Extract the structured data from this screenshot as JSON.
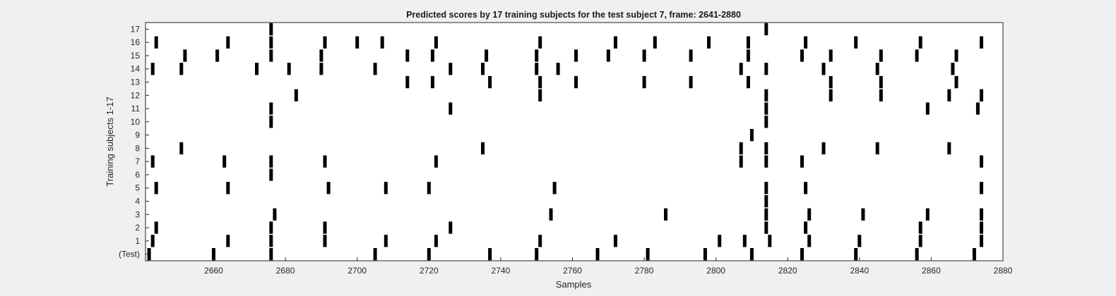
{
  "chart_data": {
    "type": "raster",
    "title": "Predicted scores by 17 training subjects for the test subject 7, frame: 2641-2880",
    "xlabel": "Samples",
    "ylabel": "Training subjects 1-17",
    "xlim": [
      2641,
      2880
    ],
    "x_ticks": [
      2660,
      2680,
      2700,
      2720,
      2740,
      2760,
      2780,
      2800,
      2820,
      2840,
      2860,
      2880
    ],
    "y_tick_labels": [
      "(Test)",
      "1",
      "2",
      "3",
      "4",
      "5",
      "6",
      "7",
      "8",
      "9",
      "10",
      "11",
      "12",
      "13",
      "14",
      "15",
      "16",
      "17"
    ],
    "series": [
      {
        "name": "(Test)",
        "values": [
          2642,
          2660,
          2676,
          2705,
          2720,
          2737,
          2750,
          2767,
          2781,
          2797,
          2810,
          2824,
          2839,
          2856,
          2872
        ]
      },
      {
        "name": "1",
        "values": [
          2643,
          2664,
          2676,
          2691,
          2708,
          2722,
          2751,
          2772,
          2801,
          2808,
          2815,
          2826,
          2840,
          2857,
          2874
        ]
      },
      {
        "name": "2",
        "values": [
          2644,
          2676,
          2691,
          2726,
          2814,
          2825,
          2857,
          2874
        ]
      },
      {
        "name": "3",
        "values": [
          2677,
          2754,
          2786,
          2814,
          2826,
          2841,
          2859,
          2874
        ]
      },
      {
        "name": "4",
        "values": [
          2814
        ]
      },
      {
        "name": "5",
        "values": [
          2644,
          2664,
          2692,
          2708,
          2720,
          2755,
          2814,
          2825,
          2874
        ]
      },
      {
        "name": "6",
        "values": [
          2676
        ]
      },
      {
        "name": "7",
        "values": [
          2643,
          2663,
          2676,
          2691,
          2722,
          2807,
          2814,
          2824,
          2874
        ]
      },
      {
        "name": "8",
        "values": [
          2651,
          2735,
          2807,
          2814,
          2830,
          2845,
          2865
        ]
      },
      {
        "name": "9",
        "values": [
          2810
        ]
      },
      {
        "name": "10",
        "values": [
          2676,
          2814
        ]
      },
      {
        "name": "11",
        "values": [
          2676,
          2726,
          2814,
          2859,
          2873
        ]
      },
      {
        "name": "12",
        "values": [
          2683,
          2751,
          2814,
          2832,
          2846,
          2865,
          2874
        ]
      },
      {
        "name": "13",
        "values": [
          2714,
          2721,
          2737,
          2751,
          2761,
          2780,
          2793,
          2809,
          2832,
          2846,
          2867
        ]
      },
      {
        "name": "14",
        "values": [
          2643,
          2651,
          2672,
          2681,
          2690,
          2705,
          2726,
          2735,
          2750,
          2756,
          2807,
          2814,
          2830,
          2845,
          2866
        ]
      },
      {
        "name": "15",
        "values": [
          2652,
          2661,
          2676,
          2690,
          2714,
          2721,
          2736,
          2750,
          2761,
          2770,
          2780,
          2793,
          2809,
          2824,
          2832,
          2846,
          2856,
          2867
        ]
      },
      {
        "name": "16",
        "values": [
          2644,
          2664,
          2676,
          2691,
          2700,
          2707,
          2722,
          2751,
          2772,
          2783,
          2798,
          2809,
          2825,
          2839,
          2857,
          2874
        ]
      },
      {
        "name": "17",
        "values": [
          2676,
          2814
        ]
      }
    ],
    "marker": "vertical bar",
    "bar_color": "#000000",
    "axes_background": "#ffffff",
    "figure_background": "#f0f0f0",
    "grid": false,
    "legend": "none"
  }
}
